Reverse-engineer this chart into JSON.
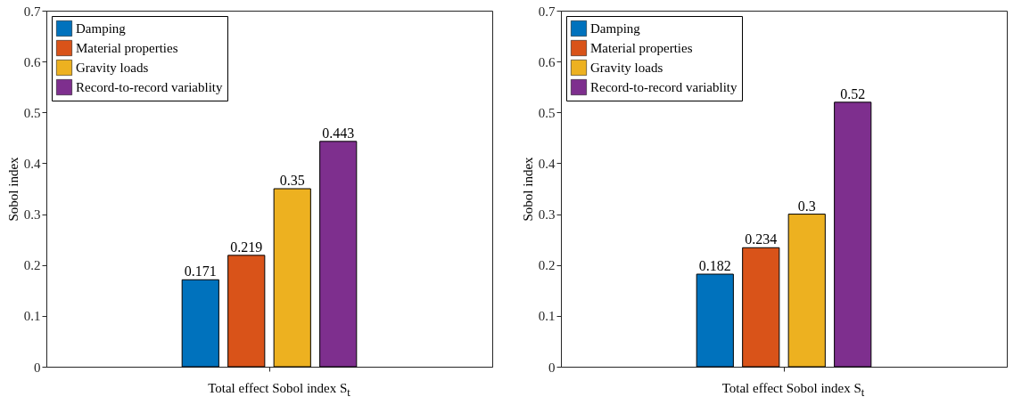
{
  "chart_data": [
    {
      "type": "bar",
      "categories": [
        null
      ],
      "xlabel": "Total effect Sobol index S$_{t}$",
      "ylabel": "Sobol index",
      "ylim": [
        0,
        0.7
      ],
      "yticks": [
        0,
        0.1,
        0.2,
        0.3,
        0.4,
        0.5,
        0.6,
        0.7
      ],
      "data_labels": true,
      "legend": "top left",
      "series": [
        {
          "name": "Damping",
          "color": "#0072bd",
          "values": [
            0.171
          ]
        },
        {
          "name": "Material properties",
          "color": "#d95319",
          "values": [
            0.219
          ]
        },
        {
          "name": "Gravity loads",
          "color": "#edb120",
          "values": [
            0.35
          ]
        },
        {
          "name": "Record-to-record variablity",
          "color": "#7e2f8e",
          "values": [
            0.443
          ]
        }
      ]
    },
    {
      "type": "bar",
      "categories": [
        null
      ],
      "xlabel": "Total effect Sobol index S$_{t}$",
      "ylabel": "Sobol index",
      "ylim": [
        0,
        0.7
      ],
      "yticks": [
        0,
        0.1,
        0.2,
        0.3,
        0.4,
        0.5,
        0.6,
        0.7
      ],
      "data_labels": true,
      "legend": "top left",
      "series": [
        {
          "name": "Damping",
          "color": "#0072bd",
          "values": [
            0.182
          ]
        },
        {
          "name": "Material properties",
          "color": "#d95319",
          "values": [
            0.234
          ]
        },
        {
          "name": "Gravity loads",
          "color": "#edb120",
          "values": [
            0.3
          ]
        },
        {
          "name": "Record-to-record variablity",
          "color": "#7e2f8e",
          "values": [
            0.52
          ]
        }
      ]
    }
  ]
}
